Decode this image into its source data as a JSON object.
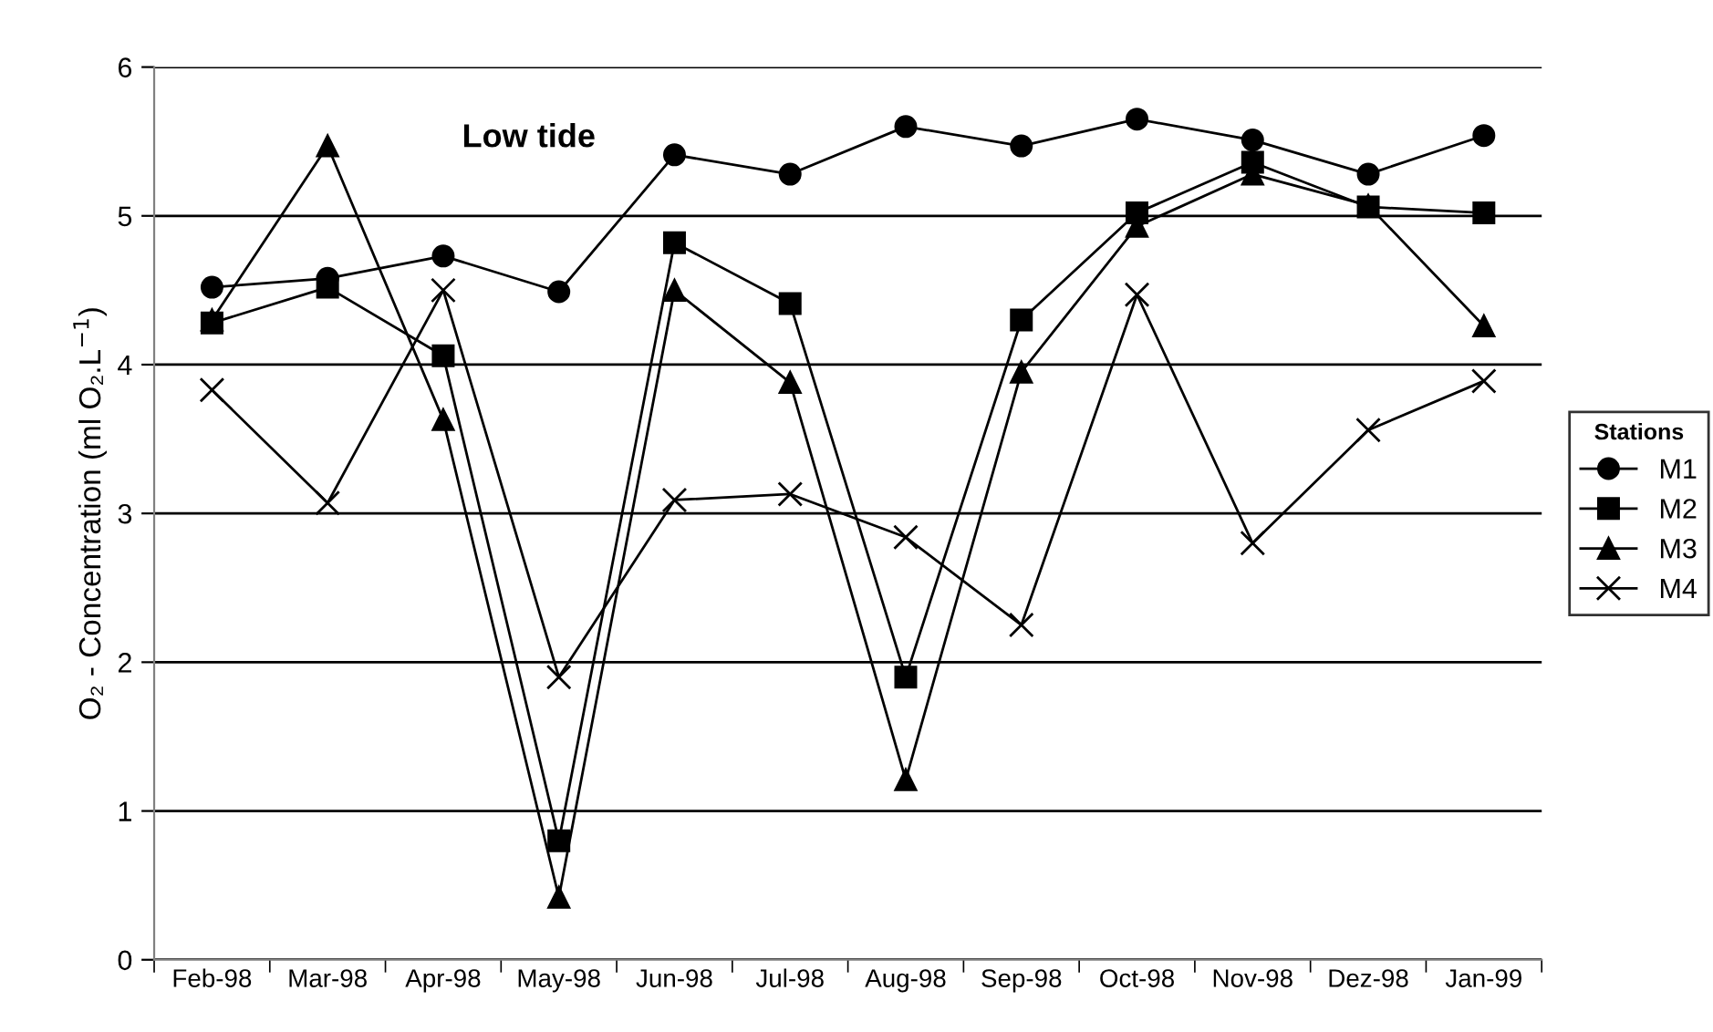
{
  "chart_data": {
    "type": "line",
    "title": "Low tide",
    "ylabel": "O₂ - Concentration (ml O₂.L$^{−1}$)",
    "legend_title": "Stations",
    "categories": [
      "Feb-98",
      "Mar-98",
      "Apr-98",
      "May-98",
      "Jun-98",
      "Jul-98",
      "Aug-98",
      "Sep-98",
      "Oct-98",
      "Nov-98",
      "Dez-98",
      "Jan-99"
    ],
    "series": [
      {
        "name": "M1",
        "color": "#000000",
        "marker": "circle",
        "values": [
          4.52,
          4.58,
          4.73,
          4.49,
          5.41,
          5.28,
          5.6,
          5.47,
          5.65,
          5.51,
          5.28,
          5.54
        ]
      },
      {
        "name": "M2",
        "color": "#000000",
        "marker": "square",
        "values": [
          4.28,
          4.52,
          4.06,
          0.8,
          4.82,
          4.41,
          1.9,
          4.3,
          5.02,
          5.36,
          5.06,
          5.02
        ]
      },
      {
        "name": "M3",
        "color": "#000000",
        "marker": "triangle",
        "values": [
          4.3,
          5.47,
          3.63,
          0.42,
          4.5,
          3.88,
          1.21,
          3.95,
          4.93,
          5.28,
          5.07,
          4.26
        ]
      },
      {
        "name": "M4",
        "color": "#000000",
        "marker": "cross",
        "values": [
          3.83,
          3.07,
          4.5,
          1.9,
          3.09,
          3.13,
          2.84,
          2.25,
          4.47,
          2.8,
          3.56,
          3.89
        ]
      }
    ],
    "ylim": [
      0,
      6
    ],
    "yticks": [
      0,
      1,
      2,
      3,
      4,
      5,
      6
    ],
    "grid": "y",
    "legend": "right",
    "line_style": "solid"
  }
}
